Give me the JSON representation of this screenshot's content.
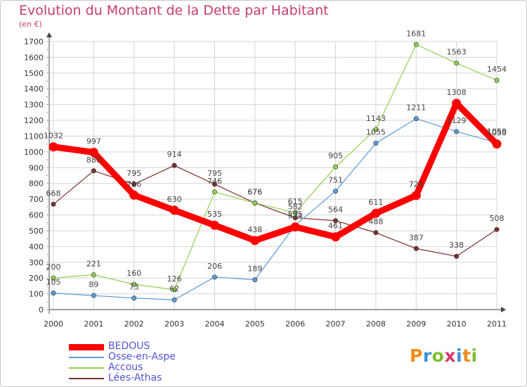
{
  "header": {
    "title": "Evolution du Montant de la Dette par Habitant",
    "subtitle": "(en €)"
  },
  "logo": {
    "text": "Proxiti",
    "colors": [
      "#f08c1e",
      "#3a8fd8",
      "#7cbf2e",
      "#d83a6b",
      "#3a8fd8",
      "#f08c1e",
      "#7cbf2e"
    ]
  },
  "colors": {
    "title": "#c83c6e",
    "legend_text": "#5454d6",
    "axis": "#444444",
    "grid": "#d4d4d4"
  },
  "chart_data": {
    "type": "line",
    "title": "Evolution du Montant de la Dette par Habitant",
    "subtitle": "(en €)",
    "x": [
      "2000",
      "2001",
      "2002",
      "2003",
      "2004",
      "2005",
      "2006",
      "2007",
      "2008",
      "2009",
      "2010",
      "2011"
    ],
    "yticks": [
      "0",
      "100",
      "200",
      "300",
      "400",
      "500",
      "600",
      "700",
      "800",
      "900",
      "1000",
      "1100",
      "1200",
      "1300",
      "1400",
      "1500",
      "1600",
      "1700"
    ],
    "ylim": [
      0,
      1700
    ],
    "grid": true,
    "legend_position": "bottom-left",
    "series": [
      {
        "name": "BEDOUS",
        "color": "#ff0000",
        "values": [
          1032,
          997,
          726,
          630,
          535,
          438,
          524,
          461,
          611,
          724,
          1308,
          1050
        ],
        "labels": [
          "1032",
          "997",
          "726",
          "630",
          "535",
          "438",
          "524",
          "461",
          "611",
          "724",
          "1308",
          "1050"
        ]
      },
      {
        "name": "Osse-en-Aspe",
        "color": "#5b9bd5",
        "values": [
          105,
          89,
          73,
          62,
          206,
          189,
          535,
          751,
          1055,
          1211,
          1129,
          1059
        ],
        "labels": [
          "105",
          "89",
          "73",
          "62",
          "206",
          "189",
          "535",
          "751",
          "1055",
          "1211",
          "1129",
          "1059"
        ]
      },
      {
        "name": "Accous",
        "color": "#92d050",
        "values": [
          200,
          221,
          160,
          126,
          746,
          676,
          615,
          905,
          1143,
          1681,
          1563,
          1454
        ],
        "labels": [
          "200",
          "221",
          "160",
          "126",
          "746",
          "676",
          "615",
          "905",
          "1143",
          "1681",
          "1563",
          "1454"
        ]
      },
      {
        "name": "Lées-Athas",
        "color": "#7b2f2f",
        "values": [
          668,
          880,
          795,
          914,
          795,
          676,
          582,
          564,
          488,
          387,
          338,
          508
        ],
        "labels": [
          "668",
          "880",
          "795",
          "914",
          "795",
          "676",
          "582",
          "564",
          "488",
          "387",
          "338",
          "508"
        ]
      }
    ]
  }
}
